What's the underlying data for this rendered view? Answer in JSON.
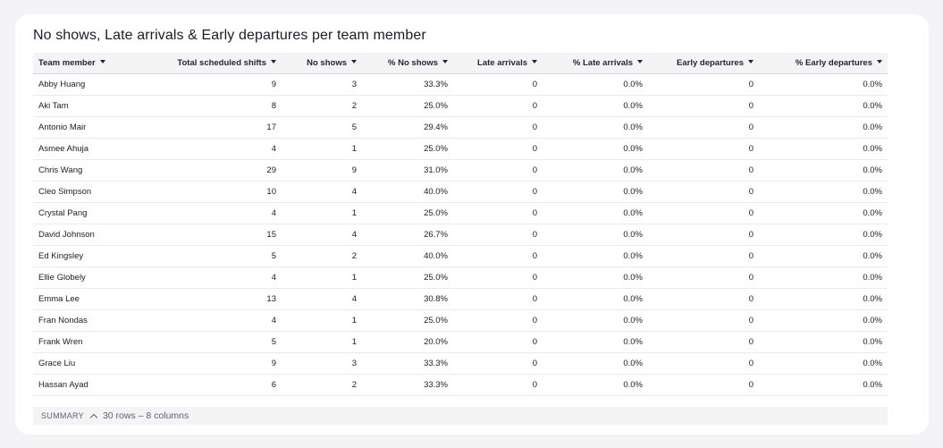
{
  "title": "No shows, Late arrivals & Early departures per team member",
  "columns": [
    {
      "label": "Team member",
      "align": "left"
    },
    {
      "label": "Total scheduled shifts",
      "align": "right"
    },
    {
      "label": "No shows",
      "align": "right"
    },
    {
      "label": "% No shows",
      "align": "right"
    },
    {
      "label": "Late arrivals",
      "align": "right"
    },
    {
      "label": "% Late arrivals",
      "align": "right"
    },
    {
      "label": "Early departures",
      "align": "right"
    },
    {
      "label": "% Early departures",
      "align": "right"
    }
  ],
  "rows": [
    [
      "Abby Huang",
      "9",
      "3",
      "33.3%",
      "0",
      "0.0%",
      "0",
      "0.0%"
    ],
    [
      "Aki Tam",
      "8",
      "2",
      "25.0%",
      "0",
      "0.0%",
      "0",
      "0.0%"
    ],
    [
      "Antonio Mair",
      "17",
      "5",
      "29.4%",
      "0",
      "0.0%",
      "0",
      "0.0%"
    ],
    [
      "Asmee Ahuja",
      "4",
      "1",
      "25.0%",
      "0",
      "0.0%",
      "0",
      "0.0%"
    ],
    [
      "Chris Wang",
      "29",
      "9",
      "31.0%",
      "0",
      "0.0%",
      "0",
      "0.0%"
    ],
    [
      "Cleo Simpson",
      "10",
      "4",
      "40.0%",
      "0",
      "0.0%",
      "0",
      "0.0%"
    ],
    [
      "Crystal Pang",
      "4",
      "1",
      "25.0%",
      "0",
      "0.0%",
      "0",
      "0.0%"
    ],
    [
      "David Johnson",
      "15",
      "4",
      "26.7%",
      "0",
      "0.0%",
      "0",
      "0.0%"
    ],
    [
      "Ed Kingsley",
      "5",
      "2",
      "40.0%",
      "0",
      "0.0%",
      "0",
      "0.0%"
    ],
    [
      "Ellie Globely",
      "4",
      "1",
      "25.0%",
      "0",
      "0.0%",
      "0",
      "0.0%"
    ],
    [
      "Emma Lee",
      "13",
      "4",
      "30.8%",
      "0",
      "0.0%",
      "0",
      "0.0%"
    ],
    [
      "Fran Nondas",
      "4",
      "1",
      "25.0%",
      "0",
      "0.0%",
      "0",
      "0.0%"
    ],
    [
      "Frank Wren",
      "5",
      "1",
      "20.0%",
      "0",
      "0.0%",
      "0",
      "0.0%"
    ],
    [
      "Grace Liu",
      "9",
      "3",
      "33.3%",
      "0",
      "0.0%",
      "0",
      "0.0%"
    ],
    [
      "Hassan Ayad",
      "6",
      "2",
      "33.3%",
      "0",
      "0.0%",
      "0",
      "0.0%"
    ]
  ],
  "footer": {
    "summary_label": "SUMMARY",
    "rows_info": "30 rows – 8 columns"
  },
  "icons": {
    "sort": "caret-down-icon",
    "summary_toggle": "chevron-up-icon"
  }
}
